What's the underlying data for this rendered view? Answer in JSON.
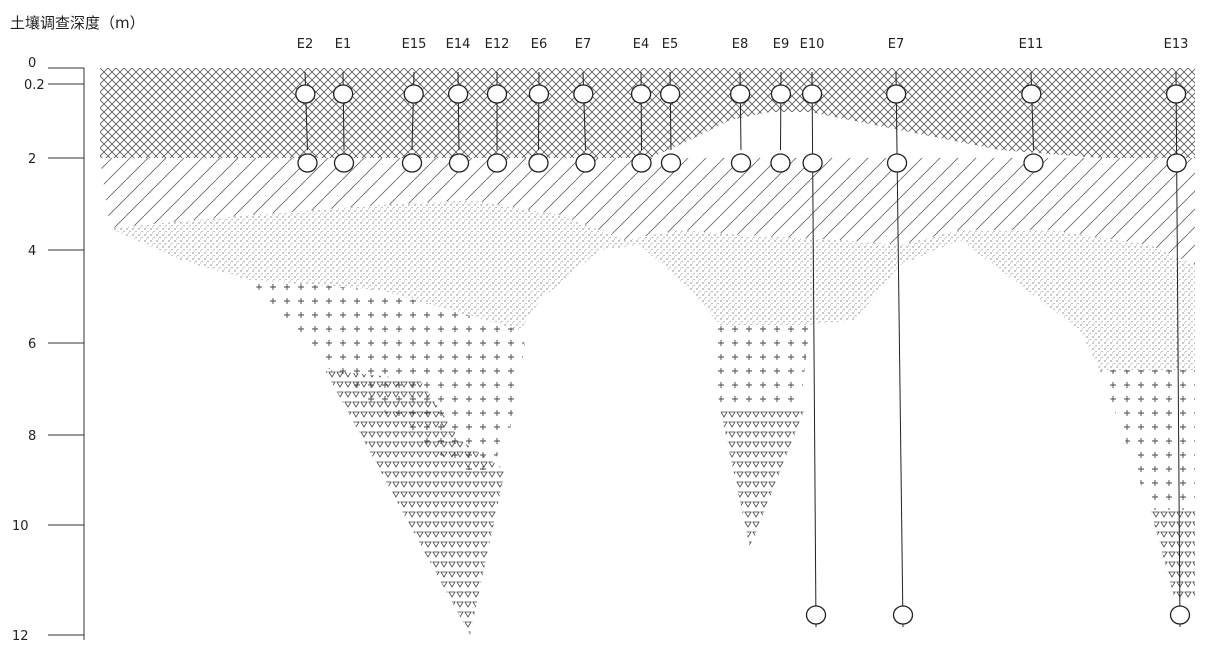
{
  "axis_title": "土壤调查深度（m）",
  "depth_ticks": [
    "0",
    "0.2",
    "2",
    "4",
    "6",
    "8",
    "10",
    "12"
  ],
  "depth_values": [
    0,
    0.2,
    2,
    4,
    6,
    8,
    10,
    12
  ],
  "boreholes": [
    {
      "label": "E2",
      "samples_m": [
        0.2,
        2
      ]
    },
    {
      "label": "E1",
      "samples_m": [
        0.2,
        2
      ]
    },
    {
      "label": "E15",
      "samples_m": [
        0.2,
        2
      ]
    },
    {
      "label": "E14",
      "samples_m": [
        0.2,
        2
      ]
    },
    {
      "label": "E12",
      "samples_m": [
        0.2,
        2
      ]
    },
    {
      "label": "E6",
      "samples_m": [
        0.2,
        2
      ]
    },
    {
      "label": "E7",
      "samples_m": [
        0.2,
        2
      ]
    },
    {
      "label": "E4",
      "samples_m": [
        0.2,
        2
      ]
    },
    {
      "label": "E5",
      "samples_m": [
        0.2,
        2
      ]
    },
    {
      "label": "E8",
      "samples_m": [
        0.2,
        2
      ]
    },
    {
      "label": "E9",
      "samples_m": [
        0.2,
        2
      ]
    },
    {
      "label": "E10",
      "samples_m": [
        0.2,
        2,
        12
      ]
    },
    {
      "label": "E7",
      "samples_m": [
        0.2,
        2,
        12
      ]
    },
    {
      "label": "E11",
      "samples_m": [
        0.2,
        2
      ]
    },
    {
      "label": "E13",
      "samples_m": [
        0.2,
        2,
        12
      ]
    }
  ]
}
